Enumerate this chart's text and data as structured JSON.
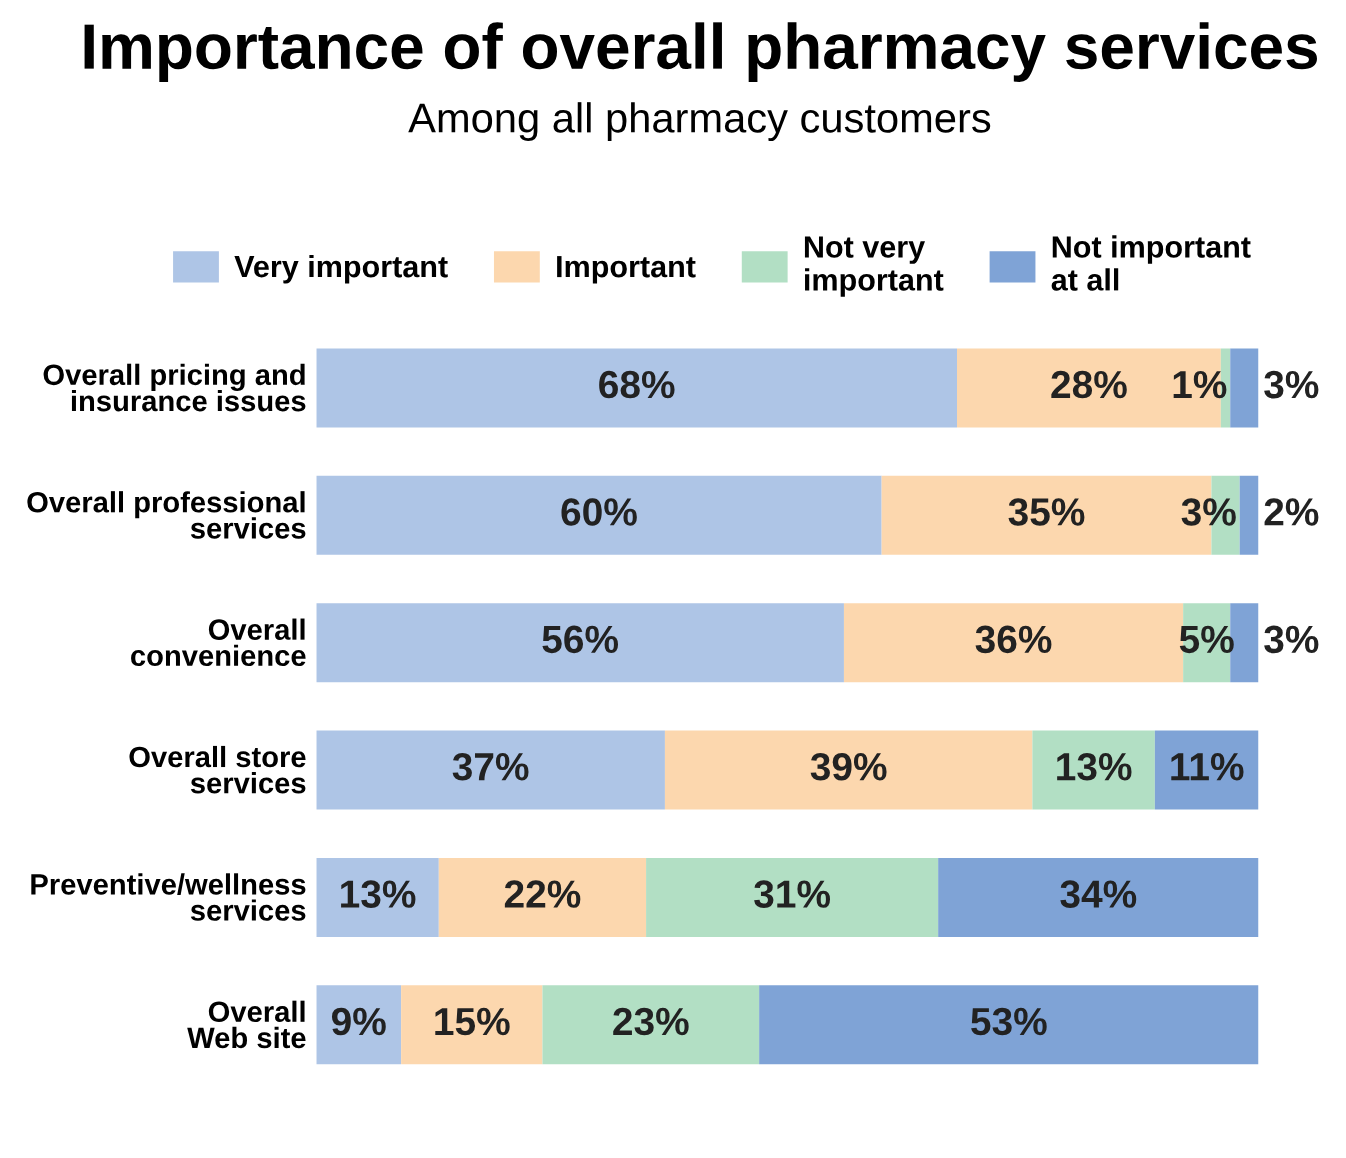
{
  "chart_data": {
    "type": "bar",
    "orientation": "horizontal",
    "stacked": true,
    "legend": "top",
    "grid": false,
    "title": "Importance of overall pharmacy services",
    "subtitle": "Among all pharmacy customers",
    "categories": [
      "Overall pricing and\ninsurance issues",
      "Overall professional\nservices",
      "Overall\nconvenience",
      "Overall store\nservices",
      "Preventive/wellness\nservices",
      "Overall\nWeb site"
    ],
    "series": [
      {
        "name": "Very important",
        "color": "#aec5e6",
        "values": [
          68,
          60,
          56,
          37,
          13,
          9
        ],
        "value_labels": [
          "68%",
          "60%",
          "56%",
          "37%",
          "13%",
          "9%"
        ]
      },
      {
        "name": "Important",
        "color": "#fcd7ae",
        "values": [
          28,
          35,
          36,
          39,
          22,
          15
        ],
        "value_labels": [
          "28%",
          "35%",
          "36%",
          "39%",
          "22%",
          "15%"
        ]
      },
      {
        "name": "Not very\nimportant",
        "color": "#b2dfc4",
        "values": [
          1,
          3,
          5,
          13,
          31,
          23
        ],
        "value_labels": [
          "1%",
          "3%",
          "5%",
          "13%",
          "31%",
          "23%"
        ]
      },
      {
        "name": "Not important\nat all",
        "color": "#7fa3d6",
        "values": [
          3,
          2,
          3,
          11,
          34,
          53
        ],
        "value_labels": [
          "3%",
          "2%",
          "3%",
          "11%",
          "34%",
          "53%"
        ]
      }
    ]
  }
}
